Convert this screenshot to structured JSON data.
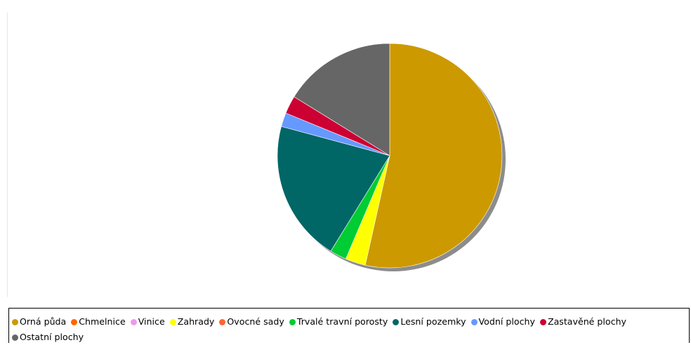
{
  "chart_data": {
    "type": "pie",
    "title": "",
    "start_angle_deg": 0,
    "direction": "clockwise",
    "shadow": true,
    "legend_position": "bottom",
    "slices": [
      {
        "label": "Orná půda",
        "value": 53.5,
        "color": "#cc9900"
      },
      {
        "label": "Chmelnice",
        "value": 0,
        "color": "#ff6600"
      },
      {
        "label": "Vinice",
        "value": 0,
        "color": "#ee99ee"
      },
      {
        "label": "Zahrady",
        "value": 2.9,
        "color": "#ffff00"
      },
      {
        "label": "Ovocné sady",
        "value": 0,
        "color": "#ff6633"
      },
      {
        "label": "Trvalé travní porosty",
        "value": 2.4,
        "color": "#00cc33"
      },
      {
        "label": "Lesní pozemky",
        "value": 20.4,
        "color": "#006666"
      },
      {
        "label": "Vodní plochy",
        "value": 2.0,
        "color": "#6699ff"
      },
      {
        "label": "Zastavěné plochy",
        "value": 2.6,
        "color": "#cc0033"
      },
      {
        "label": "Ostatní plochy",
        "value": 16.2,
        "color": "#666666"
      }
    ]
  }
}
